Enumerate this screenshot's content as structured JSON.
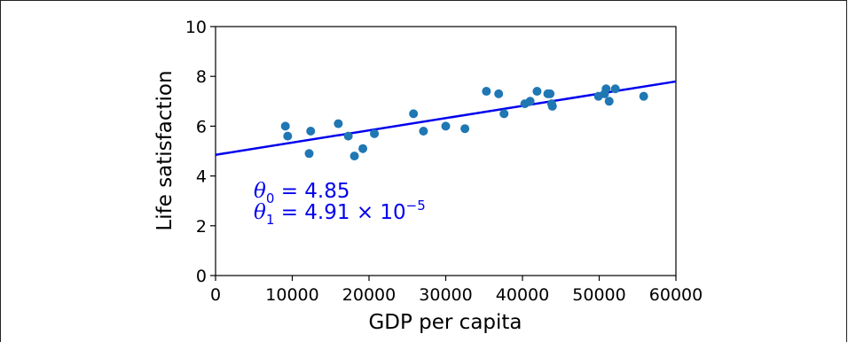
{
  "chart_data": {
    "type": "scatter",
    "xlabel": "GDP per capita",
    "ylabel": "Life satisfaction",
    "xlim": [
      0,
      60000
    ],
    "ylim": [
      0,
      10
    ],
    "xticks": [
      0,
      10000,
      20000,
      30000,
      40000,
      50000,
      60000
    ],
    "yticks": [
      0,
      2,
      4,
      6,
      8,
      10
    ],
    "grid": false,
    "point_color": "#1f77b4",
    "line_color": "#0000ee",
    "points": [
      {
        "x": 9100,
        "y": 6.0
      },
      {
        "x": 9400,
        "y": 5.6
      },
      {
        "x": 12200,
        "y": 4.9
      },
      {
        "x": 12400,
        "y": 5.8
      },
      {
        "x": 16000,
        "y": 6.1
      },
      {
        "x": 17300,
        "y": 5.6
      },
      {
        "x": 18100,
        "y": 4.8
      },
      {
        "x": 19200,
        "y": 5.1
      },
      {
        "x": 20700,
        "y": 5.7
      },
      {
        "x": 25800,
        "y": 6.5
      },
      {
        "x": 27100,
        "y": 5.8
      },
      {
        "x": 30000,
        "y": 6.0
      },
      {
        "x": 32500,
        "y": 5.9
      },
      {
        "x": 35300,
        "y": 7.4
      },
      {
        "x": 36900,
        "y": 7.3
      },
      {
        "x": 37600,
        "y": 6.5
      },
      {
        "x": 40300,
        "y": 6.9
      },
      {
        "x": 41000,
        "y": 7.0
      },
      {
        "x": 41900,
        "y": 7.4
      },
      {
        "x": 43300,
        "y": 7.3
      },
      {
        "x": 43600,
        "y": 7.3
      },
      {
        "x": 43800,
        "y": 6.9
      },
      {
        "x": 43900,
        "y": 6.8
      },
      {
        "x": 49900,
        "y": 7.2
      },
      {
        "x": 50700,
        "y": 7.3
      },
      {
        "x": 50900,
        "y": 7.5
      },
      {
        "x": 51300,
        "y": 7.0
      },
      {
        "x": 52100,
        "y": 7.5
      },
      {
        "x": 55800,
        "y": 7.2
      }
    ],
    "fit_line": {
      "intercept": 4.85,
      "slope": 4.91e-05
    },
    "annotations": {
      "theta0": {
        "symbol": "θ",
        "sub": "0",
        "eq": " = 4.85"
      },
      "theta1": {
        "symbol": "θ",
        "sub": "1",
        "eq": " = 4.91 × 10",
        "sup": "−5"
      }
    }
  }
}
